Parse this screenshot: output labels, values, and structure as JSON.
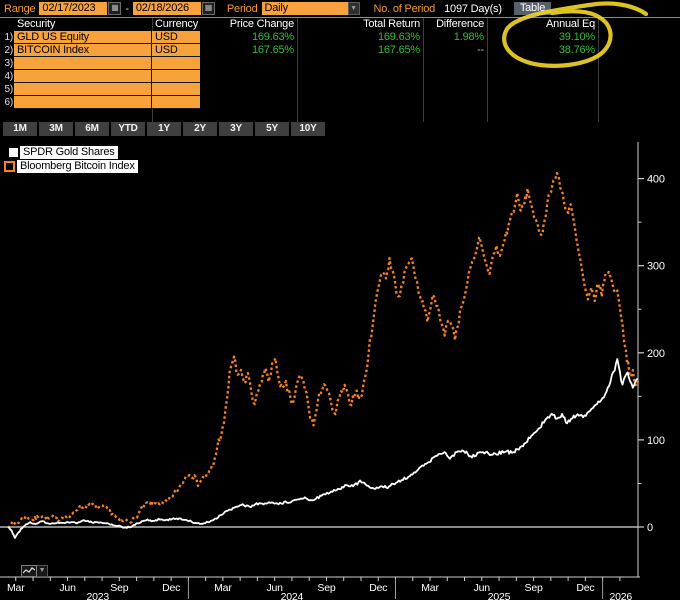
{
  "toolbar": {
    "range_label": "Range",
    "range_start": "02/17/2023",
    "range_sep": "-",
    "range_end": "02/18/2026",
    "period_label": "Period",
    "period_value": "Daily",
    "num_period_label": "No. of Period",
    "num_period_value": "1097 Day(s)",
    "table_button": "Table"
  },
  "table": {
    "headers": [
      "Security",
      "Currency",
      "Price Change",
      "Total Return",
      "Difference",
      "Annual Eq"
    ],
    "rows": [
      {
        "num": "1)",
        "security": "GLD US Equity",
        "currency": "USD",
        "price_change": "169.63%",
        "total_return": "169.63%",
        "difference": "1.98%",
        "annual_eq": "39.10%"
      },
      {
        "num": "2)",
        "security": "BITCOIN Index",
        "currency": "USD",
        "price_change": "167.65%",
        "total_return": "167.65%",
        "difference": "--",
        "annual_eq": "38.76%"
      },
      {
        "num": "3)",
        "security": "",
        "currency": "",
        "price_change": "",
        "total_return": "",
        "difference": "",
        "annual_eq": ""
      },
      {
        "num": "4)",
        "security": "",
        "currency": "",
        "price_change": "",
        "total_return": "",
        "difference": "",
        "annual_eq": ""
      },
      {
        "num": "5)",
        "security": "",
        "currency": "",
        "price_change": "",
        "total_return": "",
        "difference": "",
        "annual_eq": ""
      },
      {
        "num": "6)",
        "security": "",
        "currency": "",
        "price_change": "",
        "total_return": "",
        "difference": "",
        "annual_eq": ""
      }
    ]
  },
  "tabs": [
    "1M",
    "3M",
    "6M",
    "YTD",
    "1Y",
    "2Y",
    "3Y",
    "5Y",
    "10Y"
  ],
  "legend": [
    {
      "label": "SPDR Gold Shares",
      "swatch": "white-solid-square"
    },
    {
      "label": "Bloomberg Bitcoin Index",
      "swatch": "orange-dashed-square"
    }
  ],
  "annotation": {
    "type": "hand-drawn-circle",
    "color": "#eed225",
    "around": "Annual Eq column values"
  },
  "colors": {
    "accent_orange": "#f7a23b",
    "label_orange": "#f79a2d",
    "positive_green": "#30c030",
    "bitcoin_line": "#f8821c",
    "gold_line": "#ffffff",
    "annotation_yellow": "#eed225",
    "tab_gray": "#3f3f3f",
    "table_button_gray": "#55616b"
  },
  "chart_data": {
    "type": "line",
    "x_unit": "months since 2023-02-17",
    "x_range": [
      0,
      36.5
    ],
    "ylim": [
      -50,
      430
    ],
    "y_ticks": [
      0,
      100,
      200,
      300,
      400
    ],
    "y_minor_ticks": [
      50,
      150,
      250,
      350
    ],
    "month_tick_start": 0.45,
    "month_labels": [
      "Mar",
      "Jun",
      "Sep",
      "Dec",
      "Mar",
      "Jun",
      "Sep",
      "Dec",
      "Mar",
      "Jun",
      "Sep",
      "Dec"
    ],
    "years": [
      {
        "label": "2023",
        "center_month": 5.2
      },
      {
        "label": "2024",
        "center_month": 16.45
      },
      {
        "label": "2025",
        "center_month": 28.45
      },
      {
        "label": "2026",
        "center_month": 35.5
      }
    ],
    "year_separator_months": [
      10.45,
      22.45,
      34.45
    ],
    "zero_line": true,
    "grid": false,
    "legend_position": "top-left",
    "series": [
      {
        "name": "Bloomberg Bitcoin Index",
        "color": "#f8821c",
        "dash": true,
        "width": 2.3,
        "noise": 5,
        "final_value": 167.65,
        "points": [
          [
            0,
            0
          ],
          [
            0.25,
            5
          ],
          [
            0.5,
            3
          ],
          [
            0.8,
            9
          ],
          [
            1.1,
            12
          ],
          [
            1.4,
            8
          ],
          [
            1.7,
            11
          ],
          [
            2.0,
            13
          ],
          [
            2.3,
            9
          ],
          [
            2.6,
            11
          ],
          [
            2.9,
            8
          ],
          [
            3.2,
            12
          ],
          [
            3.5,
            10
          ],
          [
            3.8,
            16
          ],
          [
            4.1,
            23
          ],
          [
            4.5,
            24
          ],
          [
            4.9,
            25
          ],
          [
            5.2,
            22
          ],
          [
            5.5,
            23
          ],
          [
            5.9,
            18
          ],
          [
            6.2,
            12
          ],
          [
            6.5,
            6
          ],
          [
            6.8,
            8
          ],
          [
            7.1,
            7
          ],
          [
            7.4,
            10
          ],
          [
            7.7,
            20
          ],
          [
            8.0,
            27
          ],
          [
            8.3,
            26
          ],
          [
            8.7,
            28
          ],
          [
            9.0,
            26
          ],
          [
            9.3,
            30
          ],
          [
            9.6,
            38
          ],
          [
            9.9,
            45
          ],
          [
            10.2,
            55
          ],
          [
            10.5,
            63
          ],
          [
            10.8,
            57
          ],
          [
            11.0,
            50
          ],
          [
            11.3,
            56
          ],
          [
            11.6,
            60
          ],
          [
            11.9,
            72
          ],
          [
            12.2,
            98
          ],
          [
            12.5,
            115
          ],
          [
            12.7,
            150
          ],
          [
            12.9,
            185
          ],
          [
            13.1,
            196
          ],
          [
            13.3,
            170
          ],
          [
            13.5,
            181
          ],
          [
            13.7,
            165
          ],
          [
            13.9,
            176
          ],
          [
            14.1,
            151
          ],
          [
            14.3,
            139
          ],
          [
            14.5,
            156
          ],
          [
            14.7,
            170
          ],
          [
            14.9,
            181
          ],
          [
            15.1,
            168
          ],
          [
            15.3,
            186
          ],
          [
            15.5,
            189
          ],
          [
            15.7,
            171
          ],
          [
            15.9,
            156
          ],
          [
            16.1,
            163
          ],
          [
            16.3,
            151
          ],
          [
            16.5,
            141
          ],
          [
            16.7,
            159
          ],
          [
            16.9,
            173
          ],
          [
            17.1,
            168
          ],
          [
            17.3,
            151
          ],
          [
            17.5,
            129
          ],
          [
            17.7,
            117
          ],
          [
            17.9,
            136
          ],
          [
            18.1,
            156
          ],
          [
            18.3,
            166
          ],
          [
            18.5,
            158
          ],
          [
            18.7,
            141
          ],
          [
            18.9,
            127
          ],
          [
            19.1,
            141
          ],
          [
            19.3,
            153
          ],
          [
            19.5,
            159
          ],
          [
            19.7,
            149
          ],
          [
            19.9,
            143
          ],
          [
            20.1,
            156
          ],
          [
            20.3,
            149
          ],
          [
            20.5,
            153
          ],
          [
            20.7,
            171
          ],
          [
            20.9,
            201
          ],
          [
            21.1,
            231
          ],
          [
            21.3,
            256
          ],
          [
            21.5,
            281
          ],
          [
            21.7,
            296
          ],
          [
            21.9,
            286
          ],
          [
            22.1,
            306
          ],
          [
            22.3,
            291
          ],
          [
            22.5,
            273
          ],
          [
            22.7,
            263
          ],
          [
            22.9,
            283
          ],
          [
            23.1,
            301
          ],
          [
            23.3,
            311
          ],
          [
            23.5,
            296
          ],
          [
            23.7,
            281
          ],
          [
            23.9,
            263
          ],
          [
            24.1,
            253
          ],
          [
            24.3,
            239
          ],
          [
            24.5,
            256
          ],
          [
            24.7,
            269
          ],
          [
            24.9,
            249
          ],
          [
            25.1,
            233
          ],
          [
            25.3,
            223
          ],
          [
            25.5,
            241
          ],
          [
            25.7,
            229
          ],
          [
            25.9,
            219
          ],
          [
            26.1,
            236
          ],
          [
            26.3,
            256
          ],
          [
            26.5,
            271
          ],
          [
            26.7,
            289
          ],
          [
            26.9,
            301
          ],
          [
            27.1,
            311
          ],
          [
            27.3,
            331
          ],
          [
            27.5,
            319
          ],
          [
            27.7,
            301
          ],
          [
            27.9,
            293
          ],
          [
            28.1,
            311
          ],
          [
            28.3,
            321
          ],
          [
            28.5,
            309
          ],
          [
            28.7,
            326
          ],
          [
            29.0,
            346
          ],
          [
            29.3,
            366
          ],
          [
            29.5,
            379
          ],
          [
            29.7,
            363
          ],
          [
            29.9,
            371
          ],
          [
            30.1,
            386
          ],
          [
            30.3,
            373
          ],
          [
            30.5,
            356
          ],
          [
            30.7,
            341
          ],
          [
            30.9,
            331
          ],
          [
            31.1,
            356
          ],
          [
            31.4,
            386
          ],
          [
            31.6,
            396
          ],
          [
            31.8,
            406
          ],
          [
            32.0,
            391
          ],
          [
            32.2,
            376
          ],
          [
            32.4,
            361
          ],
          [
            32.6,
            371
          ],
          [
            32.8,
            346
          ],
          [
            33.0,
            321
          ],
          [
            33.2,
            301
          ],
          [
            33.4,
            276
          ],
          [
            33.6,
            259
          ],
          [
            33.8,
            271
          ],
          [
            34.0,
            263
          ],
          [
            34.2,
            279
          ],
          [
            34.4,
            269
          ],
          [
            34.6,
            286
          ],
          [
            34.8,
            296
          ],
          [
            35.0,
            279
          ],
          [
            35.2,
            271
          ],
          [
            35.4,
            263
          ],
          [
            35.6,
            231
          ],
          [
            35.8,
            201
          ],
          [
            36.0,
            176
          ],
          [
            36.1,
            168
          ],
          [
            36.2,
            179
          ],
          [
            36.35,
            161
          ],
          [
            36.5,
            167.65
          ]
        ]
      },
      {
        "name": "SPDR Gold Shares",
        "color": "#ffffff",
        "dash": false,
        "width": 1.8,
        "noise": 2.4,
        "final_value": 169.63,
        "points": [
          [
            0,
            0
          ],
          [
            0.2,
            -4
          ],
          [
            0.4,
            -12
          ],
          [
            0.6,
            -7
          ],
          [
            0.9,
            1
          ],
          [
            1.2,
            5
          ],
          [
            1.6,
            4
          ],
          [
            2.0,
            6
          ],
          [
            2.4,
            4
          ],
          [
            2.8,
            5
          ],
          [
            3.2,
            4
          ],
          [
            3.6,
            6
          ],
          [
            4.0,
            5
          ],
          [
            4.4,
            7
          ],
          [
            4.8,
            6
          ],
          [
            5.2,
            5
          ],
          [
            5.6,
            4
          ],
          [
            6.0,
            3
          ],
          [
            6.4,
            1
          ],
          [
            6.8,
            -1
          ],
          [
            7.2,
            1
          ],
          [
            7.6,
            5
          ],
          [
            8.0,
            8
          ],
          [
            8.4,
            7
          ],
          [
            8.8,
            9
          ],
          [
            9.2,
            8
          ],
          [
            9.6,
            10
          ],
          [
            10.0,
            9
          ],
          [
            10.4,
            8
          ],
          [
            10.8,
            5
          ],
          [
            11.2,
            3
          ],
          [
            11.6,
            6
          ],
          [
            12.0,
            9
          ],
          [
            12.4,
            15
          ],
          [
            12.8,
            19
          ],
          [
            13.2,
            23
          ],
          [
            13.6,
            25
          ],
          [
            14.0,
            23
          ],
          [
            14.4,
            27
          ],
          [
            14.8,
            26
          ],
          [
            15.2,
            28
          ],
          [
            15.6,
            26
          ],
          [
            16.0,
            28
          ],
          [
            16.4,
            29
          ],
          [
            16.8,
            31
          ],
          [
            17.2,
            33
          ],
          [
            17.6,
            31
          ],
          [
            18.0,
            34
          ],
          [
            18.4,
            38
          ],
          [
            18.8,
            41
          ],
          [
            19.2,
            44
          ],
          [
            19.6,
            48
          ],
          [
            20.0,
            47
          ],
          [
            20.4,
            52
          ],
          [
            20.8,
            48
          ],
          [
            21.2,
            43
          ],
          [
            21.6,
            47
          ],
          [
            22.0,
            46
          ],
          [
            22.4,
            50
          ],
          [
            22.8,
            54
          ],
          [
            23.2,
            58
          ],
          [
            23.6,
            64
          ],
          [
            24.0,
            69
          ],
          [
            24.4,
            75
          ],
          [
            24.8,
            81
          ],
          [
            25.2,
            86
          ],
          [
            25.6,
            80
          ],
          [
            26.0,
            85
          ],
          [
            26.4,
            88
          ],
          [
            26.8,
            81
          ],
          [
            27.2,
            84
          ],
          [
            27.6,
            86
          ],
          [
            28.0,
            83
          ],
          [
            28.4,
            85
          ],
          [
            28.8,
            87
          ],
          [
            29.2,
            85
          ],
          [
            29.6,
            90
          ],
          [
            30.0,
            97
          ],
          [
            30.4,
            106
          ],
          [
            30.8,
            115
          ],
          [
            31.2,
            124
          ],
          [
            31.5,
            131
          ],
          [
            31.8,
            122
          ],
          [
            32.1,
            129
          ],
          [
            32.4,
            119
          ],
          [
            32.7,
            125
          ],
          [
            33.0,
            129
          ],
          [
            33.4,
            127
          ],
          [
            33.8,
            136
          ],
          [
            34.2,
            143
          ],
          [
            34.6,
            153
          ],
          [
            34.9,
            168
          ],
          [
            35.15,
            182
          ],
          [
            35.3,
            191
          ],
          [
            35.45,
            176
          ],
          [
            35.6,
            163
          ],
          [
            35.75,
            172
          ],
          [
            35.9,
            177
          ],
          [
            36.05,
            167
          ],
          [
            36.2,
            158
          ],
          [
            36.35,
            166
          ],
          [
            36.5,
            169.63
          ]
        ]
      }
    ]
  }
}
